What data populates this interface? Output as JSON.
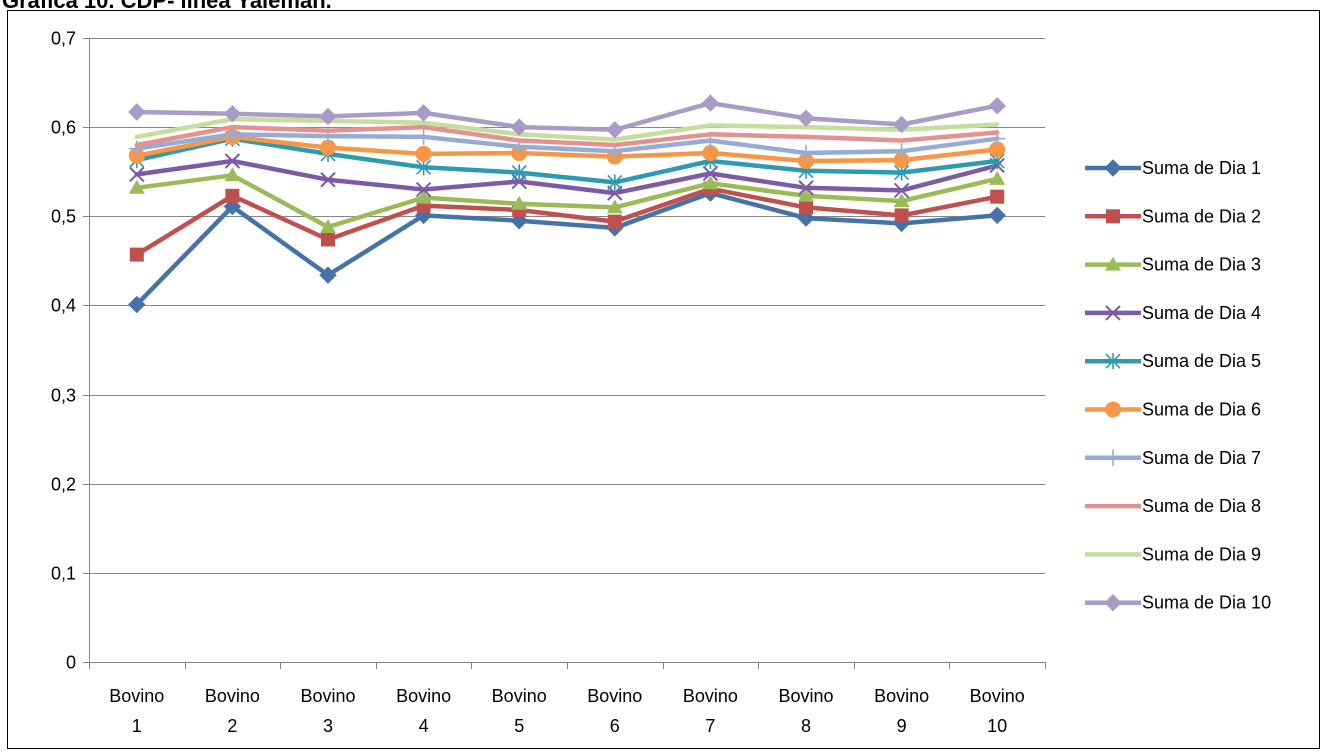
{
  "chart_data": {
    "type": "line",
    "title": "Gráfica 10. CDP- línea Yaleman.",
    "xlabel": "",
    "ylabel": "",
    "ylim": [
      0,
      0.7
    ],
    "y_ticks": [
      "0",
      "0,1",
      "0,2",
      "0,3",
      "0,4",
      "0,5",
      "0,6",
      "0,7"
    ],
    "grid": "horizontal",
    "legend_position": "right",
    "categories": [
      [
        "Bovino",
        "1"
      ],
      [
        "Bovino",
        "2"
      ],
      [
        "Bovino",
        "3"
      ],
      [
        "Bovino",
        "4"
      ],
      [
        "Bovino",
        "5"
      ],
      [
        "Bovino",
        "6"
      ],
      [
        "Bovino",
        "7"
      ],
      [
        "Bovino",
        "8"
      ],
      [
        "Bovino",
        "9"
      ],
      [
        "Bovino",
        "10"
      ]
    ],
    "series": [
      {
        "name": "Suma de Dia 1",
        "color": "#4572A7",
        "marker": "diamond",
        "values": [
          0.401,
          0.511,
          0.434,
          0.501,
          0.495,
          0.487,
          0.526,
          0.498,
          0.492,
          0.501
        ]
      },
      {
        "name": "Suma de Dia 2",
        "color": "#C0504D",
        "marker": "square",
        "values": [
          0.457,
          0.523,
          0.474,
          0.512,
          0.507,
          0.494,
          0.531,
          0.51,
          0.501,
          0.522
        ]
      },
      {
        "name": "Suma de Dia 3",
        "color": "#9BBB59",
        "marker": "triangle",
        "values": [
          0.532,
          0.546,
          0.488,
          0.521,
          0.514,
          0.51,
          0.537,
          0.523,
          0.517,
          0.542
        ]
      },
      {
        "name": "Suma de Dia 4",
        "color": "#7B5BA6",
        "marker": "x",
        "values": [
          0.547,
          0.562,
          0.541,
          0.53,
          0.539,
          0.526,
          0.548,
          0.532,
          0.529,
          0.557
        ]
      },
      {
        "name": "Suma de Dia 5",
        "color": "#2C9BB0",
        "marker": "star",
        "values": [
          0.563,
          0.587,
          0.57,
          0.555,
          0.549,
          0.538,
          0.562,
          0.551,
          0.549,
          0.562
        ]
      },
      {
        "name": "Suma de Dia 6",
        "color": "#F79646",
        "marker": "circle",
        "values": [
          0.568,
          0.589,
          0.577,
          0.57,
          0.571,
          0.567,
          0.571,
          0.562,
          0.563,
          0.575
        ]
      },
      {
        "name": "Suma de Dia 7",
        "color": "#95ADD6",
        "marker": "plus",
        "values": [
          0.576,
          0.592,
          0.59,
          0.589,
          0.578,
          0.573,
          0.585,
          0.571,
          0.573,
          0.587
        ]
      },
      {
        "name": "Suma de Dia 8",
        "color": "#E3928F",
        "marker": "none",
        "values": [
          0.58,
          0.6,
          0.596,
          0.6,
          0.585,
          0.58,
          0.592,
          0.589,
          0.585,
          0.594
        ]
      },
      {
        "name": "Suma de Dia 9",
        "color": "#C5DD9D",
        "marker": "none",
        "values": [
          0.589,
          0.609,
          0.607,
          0.605,
          0.592,
          0.586,
          0.602,
          0.6,
          0.597,
          0.603
        ]
      },
      {
        "name": "Suma de Dia 10",
        "color": "#A99BC8",
        "marker": "diamond",
        "values": [
          0.617,
          0.615,
          0.612,
          0.616,
          0.6,
          0.597,
          0.627,
          0.61,
          0.603,
          0.624
        ]
      }
    ]
  }
}
